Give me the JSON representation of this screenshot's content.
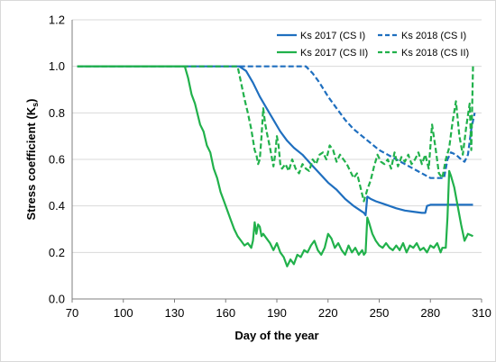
{
  "chart_data": {
    "type": "line",
    "xlabel": "Day of the year",
    "ylabel": "Stress coefficient (K",
    "ylabel_sub": "s",
    "ylabel_end": ")",
    "xlim": [
      70,
      310
    ],
    "ylim": [
      0.0,
      1.2
    ],
    "xticks": [
      70,
      100,
      130,
      160,
      190,
      220,
      250,
      280,
      310
    ],
    "yticks": [
      "0.0",
      "0.2",
      "0.4",
      "0.6",
      "0.8",
      "1.0",
      "1.2"
    ],
    "grid": "horizontal",
    "legend_position": "top-right",
    "series": [
      {
        "name": "Ks 2017 (CS I)",
        "color": "#1f6fbf",
        "dash": "solid",
        "x": [
          73,
          168,
          172,
          176,
          180,
          184,
          188,
          192,
          196,
          200,
          205,
          210,
          215,
          220,
          225,
          230,
          235,
          239,
          241,
          242,
          243,
          245,
          248,
          252,
          256,
          260,
          265,
          270,
          275,
          277,
          278,
          280,
          285,
          290,
          295,
          300,
          303,
          305
        ],
        "y": [
          1.0,
          1.0,
          0.98,
          0.93,
          0.87,
          0.82,
          0.77,
          0.72,
          0.68,
          0.65,
          0.62,
          0.58,
          0.54,
          0.5,
          0.47,
          0.43,
          0.4,
          0.38,
          0.37,
          0.36,
          0.44,
          0.43,
          0.42,
          0.41,
          0.4,
          0.39,
          0.38,
          0.375,
          0.37,
          0.37,
          0.4,
          0.405,
          0.405,
          0.405,
          0.405,
          0.405,
          0.405,
          0.405
        ]
      },
      {
        "name": "Ks 2018 (CS I)",
        "color": "#1f6fbf",
        "dash": "dashed",
        "x": [
          73,
          207,
          211,
          215,
          220,
          225,
          230,
          235,
          240,
          245,
          250,
          255,
          260,
          265,
          270,
          275,
          280,
          285,
          288,
          290,
          292,
          295,
          298,
          300,
          302,
          304,
          306
        ],
        "y": [
          1.0,
          1.0,
          0.97,
          0.93,
          0.87,
          0.82,
          0.77,
          0.73,
          0.7,
          0.67,
          0.64,
          0.62,
          0.6,
          0.58,
          0.56,
          0.54,
          0.52,
          0.52,
          0.52,
          0.6,
          0.63,
          0.62,
          0.6,
          0.59,
          0.62,
          0.73,
          0.8
        ]
      },
      {
        "name": "Ks 2017 (CS II)",
        "color": "#21b14b",
        "dash": "solid",
        "x": [
          73,
          136,
          138,
          140,
          142,
          145,
          147,
          149,
          151,
          153,
          155,
          157,
          159,
          161,
          163,
          165,
          167,
          169,
          171,
          173,
          175,
          176,
          177,
          178,
          179,
          180,
          181,
          182,
          184,
          186,
          188,
          190,
          192,
          194,
          196,
          198,
          200,
          202,
          204,
          206,
          208,
          210,
          212,
          214,
          216,
          218,
          220,
          222,
          224,
          226,
          228,
          230,
          232,
          234,
          236,
          238,
          240,
          241,
          242,
          243,
          244,
          246,
          248,
          250,
          252,
          254,
          256,
          258,
          260,
          262,
          264,
          266,
          268,
          270,
          272,
          274,
          276,
          278,
          280,
          282,
          284,
          286,
          287,
          288,
          289,
          290,
          291,
          292,
          294,
          296,
          298,
          300,
          302,
          305
        ],
        "y": [
          1.0,
          1.0,
          0.95,
          0.88,
          0.84,
          0.75,
          0.72,
          0.66,
          0.63,
          0.56,
          0.52,
          0.46,
          0.42,
          0.38,
          0.34,
          0.3,
          0.27,
          0.25,
          0.23,
          0.24,
          0.22,
          0.25,
          0.33,
          0.28,
          0.32,
          0.31,
          0.27,
          0.28,
          0.26,
          0.24,
          0.21,
          0.24,
          0.2,
          0.18,
          0.14,
          0.17,
          0.15,
          0.19,
          0.18,
          0.21,
          0.2,
          0.23,
          0.25,
          0.21,
          0.19,
          0.22,
          0.28,
          0.26,
          0.22,
          0.24,
          0.21,
          0.19,
          0.23,
          0.2,
          0.22,
          0.19,
          0.21,
          0.19,
          0.2,
          0.35,
          0.33,
          0.28,
          0.25,
          0.23,
          0.22,
          0.24,
          0.22,
          0.21,
          0.23,
          0.21,
          0.24,
          0.2,
          0.23,
          0.22,
          0.24,
          0.21,
          0.22,
          0.2,
          0.23,
          0.22,
          0.24,
          0.2,
          0.22,
          0.22,
          0.22,
          0.35,
          0.55,
          0.53,
          0.48,
          0.4,
          0.32,
          0.25,
          0.28,
          0.27
        ]
      },
      {
        "name": "Ks 2018 (CS II)",
        "color": "#21b14b",
        "dash": "dashed",
        "x": [
          73,
          167,
          169,
          171,
          173,
          175,
          177,
          178,
          179,
          180,
          181,
          182,
          183,
          184,
          186,
          188,
          189,
          190,
          191,
          192,
          193,
          195,
          197,
          199,
          201,
          203,
          205,
          207,
          209,
          211,
          213,
          215,
          217,
          219,
          221,
          223,
          225,
          227,
          229,
          231,
          233,
          235,
          237,
          239,
          241,
          243,
          245,
          247,
          249,
          251,
          253,
          255,
          257,
          259,
          261,
          263,
          265,
          267,
          269,
          271,
          273,
          275,
          277,
          279,
          281,
          283,
          285,
          287,
          289,
          291,
          293,
          295,
          297,
          299,
          301,
          303,
          304,
          305
        ],
        "y": [
          1.0,
          1.0,
          0.93,
          0.86,
          0.8,
          0.73,
          0.64,
          0.62,
          0.58,
          0.6,
          0.7,
          0.82,
          0.76,
          0.72,
          0.65,
          0.57,
          0.62,
          0.7,
          0.66,
          0.58,
          0.56,
          0.58,
          0.55,
          0.6,
          0.56,
          0.54,
          0.58,
          0.56,
          0.55,
          0.6,
          0.58,
          0.62,
          0.63,
          0.6,
          0.66,
          0.64,
          0.59,
          0.62,
          0.6,
          0.58,
          0.55,
          0.52,
          0.54,
          0.48,
          0.42,
          0.47,
          0.51,
          0.57,
          0.62,
          0.59,
          0.58,
          0.6,
          0.56,
          0.63,
          0.57,
          0.61,
          0.59,
          0.62,
          0.58,
          0.6,
          0.63,
          0.58,
          0.62,
          0.56,
          0.75,
          0.65,
          0.54,
          0.52,
          0.6,
          0.65,
          0.76,
          0.85,
          0.7,
          0.62,
          0.74,
          0.84,
          0.64,
          1.0
        ]
      }
    ]
  }
}
